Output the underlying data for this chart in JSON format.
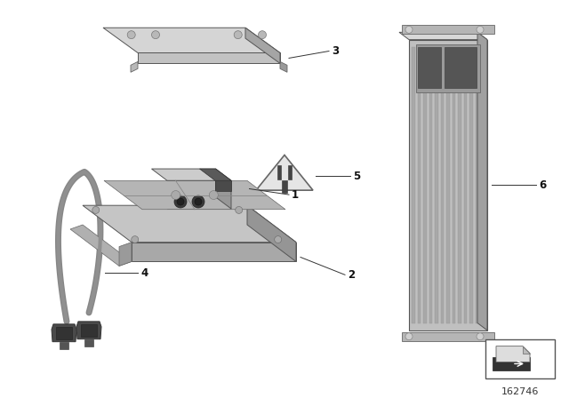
{
  "background_color": "#ffffff",
  "fig_width": 6.4,
  "fig_height": 4.48,
  "dpi": 100,
  "diagram_number": "162746",
  "label_color": "#1a1a1a",
  "line_color": "#444444",
  "gray_light": "#c8c8c8",
  "gray_mid": "#aaaaaa",
  "gray_dark": "#888888",
  "gray_darker": "#666666",
  "gray_body": "#b8b8b8",
  "gray_top": "#d8d8d8",
  "gray_side": "#999999",
  "gray_deep": "#505050"
}
